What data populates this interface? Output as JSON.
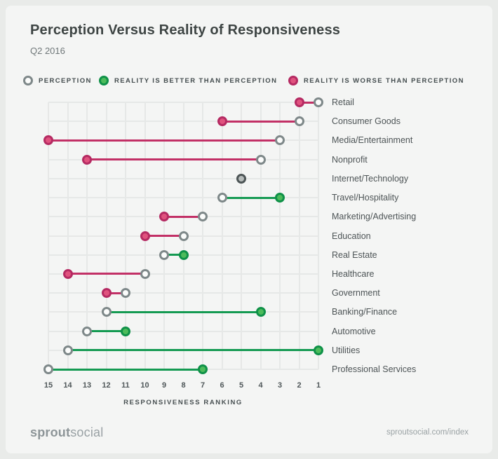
{
  "header": {
    "title": "Perception Versus Reality of Responsiveness",
    "subtitle": "Q2 2016"
  },
  "legend": [
    {
      "label": "PERCEPTION",
      "type": "perception"
    },
    {
      "label": "REALITY IS BETTER THAN PERCEPTION",
      "type": "better"
    },
    {
      "label": "REALITY IS WORSE THAN PERCEPTION",
      "type": "worse"
    }
  ],
  "colors": {
    "background": "#f4f5f4",
    "outer_background": "#e9ebe9",
    "grid": "#e6e8e7",
    "perception_stroke": "#7e8889",
    "better_fill": "#4dbb5b",
    "better_stroke": "#0f9148",
    "better_line": "#149a52",
    "worse_fill": "#e0527e",
    "worse_stroke": "#b52a62",
    "worse_line": "#c23066",
    "equal_fill": "#b7bcbb",
    "equal_stroke": "#4d5556",
    "title_text": "#3d4443",
    "label_text": "#4d5456"
  },
  "chart_data": {
    "type": "dumbbell",
    "title": "Perception Versus Reality of Responsiveness",
    "subtitle": "Q2 2016",
    "xlabel": "RESPONSIVENESS RANKING",
    "x_ticks": [
      15,
      14,
      13,
      12,
      11,
      10,
      9,
      8,
      7,
      6,
      5,
      4,
      3,
      2,
      1
    ],
    "x_axis_reversed": true,
    "x_range": [
      15,
      1
    ],
    "grid": true,
    "legend_position": "top",
    "categories": [
      "Retail",
      "Consumer Goods",
      "Media/Entertainment",
      "Nonprofit",
      "Internet/Technology",
      "Travel/Hospitality",
      "Marketing/Advertising",
      "Education",
      "Real Estate",
      "Healthcare",
      "Government",
      "Banking/Finance",
      "Automotive",
      "Utilities",
      "Professional Services"
    ],
    "series": [
      {
        "name": "Perception",
        "values": [
          1,
          2,
          3,
          4,
          5,
          6,
          7,
          8,
          9,
          10,
          11,
          12,
          13,
          14,
          15
        ]
      },
      {
        "name": "Reality",
        "values": [
          2,
          6,
          15,
          13,
          5,
          3,
          9,
          10,
          8,
          14,
          12,
          4,
          11,
          1,
          7
        ]
      }
    ],
    "status": [
      "worse",
      "worse",
      "worse",
      "worse",
      "equal",
      "better",
      "worse",
      "worse",
      "better",
      "worse",
      "worse",
      "better",
      "better",
      "better",
      "better"
    ]
  },
  "footer": {
    "logo_bold": "sprout",
    "logo_light": "social",
    "url": "sproutsocial.com/index"
  }
}
